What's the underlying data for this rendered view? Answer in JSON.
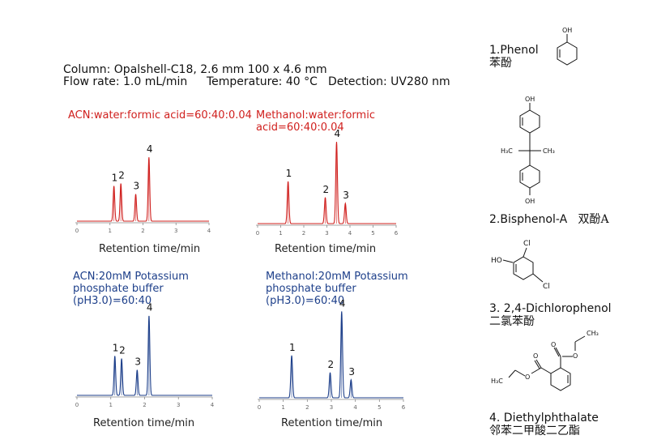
{
  "conditions": {
    "column": "Column: Opalshell-C18, 2.6 mm  100 x  4.6 mm",
    "flow_rate": "Flow rate: 1.0 mL/min",
    "temperature": "Temperature: 40 °C",
    "detection": "Detection: UV280 nm"
  },
  "colors": {
    "red": "#d0201e",
    "blue": "#1d3f8a",
    "axis": "#888888"
  },
  "chart_data": [
    {
      "type": "line",
      "title_lines": [
        "ACN:water:formic acid=60:40:0.04"
      ],
      "color": "#d0201e",
      "xlabel": "Retention time/min",
      "xlim": [
        0,
        4
      ],
      "xticks": [
        "0",
        "1",
        "2",
        "3",
        "4"
      ],
      "ylim": [
        0,
        1
      ],
      "peaks": [
        {
          "label": "1",
          "x": 1.12,
          "height": 0.43
        },
        {
          "label": "2",
          "x": 1.33,
          "height": 0.46
        },
        {
          "label": "3",
          "x": 1.78,
          "height": 0.33
        },
        {
          "label": "4",
          "x": 2.18,
          "height": 0.78
        }
      ]
    },
    {
      "type": "line",
      "title_lines": [
        "Methanol:water:formic",
        "acid=60:40:0.04"
      ],
      "color": "#d0201e",
      "xlabel": "Retention time/min",
      "xlim": [
        0,
        6
      ],
      "xticks": [
        "0",
        "1",
        "2",
        "3",
        "4",
        "5",
        "6"
      ],
      "ylim": [
        0,
        1
      ],
      "peaks": [
        {
          "label": "1",
          "x": 1.32,
          "height": 0.5
        },
        {
          "label": "2",
          "x": 2.93,
          "height": 0.31
        },
        {
          "label": "4",
          "x": 3.42,
          "height": 0.97
        },
        {
          "label": "3",
          "x": 3.8,
          "height": 0.24
        }
      ]
    },
    {
      "type": "line",
      "title_lines": [
        "ACN:20mM Potassium",
        "phosphate buffer",
        "(pH3.0)=60:40"
      ],
      "color": "#1d3f8a",
      "xlabel": "Retention time/min",
      "xlim": [
        0,
        4
      ],
      "xticks": [
        "0",
        "1",
        "2",
        "3",
        "4"
      ],
      "ylim": [
        0,
        1
      ],
      "peaks": [
        {
          "label": "1",
          "x": 1.12,
          "height": 0.45
        },
        {
          "label": "2",
          "x": 1.32,
          "height": 0.42
        },
        {
          "label": "3",
          "x": 1.78,
          "height": 0.29
        },
        {
          "label": "4",
          "x": 2.13,
          "height": 0.91
        }
      ]
    },
    {
      "type": "line",
      "title_lines": [
        "Methanol:20mM Potassium",
        "phosphate buffer",
        "(pH3.0)=60:40"
      ],
      "color": "#1d3f8a",
      "xlabel": "Retention time/min",
      "xlim": [
        0,
        6
      ],
      "xticks": [
        "0",
        "1",
        "2",
        "3",
        "4",
        "5",
        "6"
      ],
      "ylim": [
        0,
        1
      ],
      "peaks": [
        {
          "label": "1",
          "x": 1.35,
          "height": 0.47
        },
        {
          "label": "2",
          "x": 2.95,
          "height": 0.28
        },
        {
          "label": "4",
          "x": 3.43,
          "height": 0.96
        },
        {
          "label": "3",
          "x": 3.82,
          "height": 0.2
        }
      ]
    }
  ],
  "compounds": [
    {
      "name": "1.Phenol",
      "cn": "苯酚"
    },
    {
      "name": "2.Bisphenol-A",
      "cn": "双酚A"
    },
    {
      "name": "3. 2,4-Dichlorophenol",
      "cn": "二氯苯酚"
    },
    {
      "name": "4. Diethylphthalate",
      "cn": "邻苯二甲酸二乙酯"
    }
  ],
  "structure_labels": {
    "phenol_oh": "OH",
    "bpa_oh_top": "OH",
    "bpa_ch3_left": "H₃C",
    "bpa_ch3_right": "CH₃",
    "bpa_oh_bottom": "OH",
    "dcp_ho": "HO",
    "dcp_cl_top": "Cl",
    "dcp_cl_bottom": "Cl",
    "dep_ch3_top": "CH₃",
    "dep_o1": "O",
    "dep_o2": "O",
    "dep_o3": "O",
    "dep_o4": "O",
    "dep_h3c": "H₃C"
  }
}
